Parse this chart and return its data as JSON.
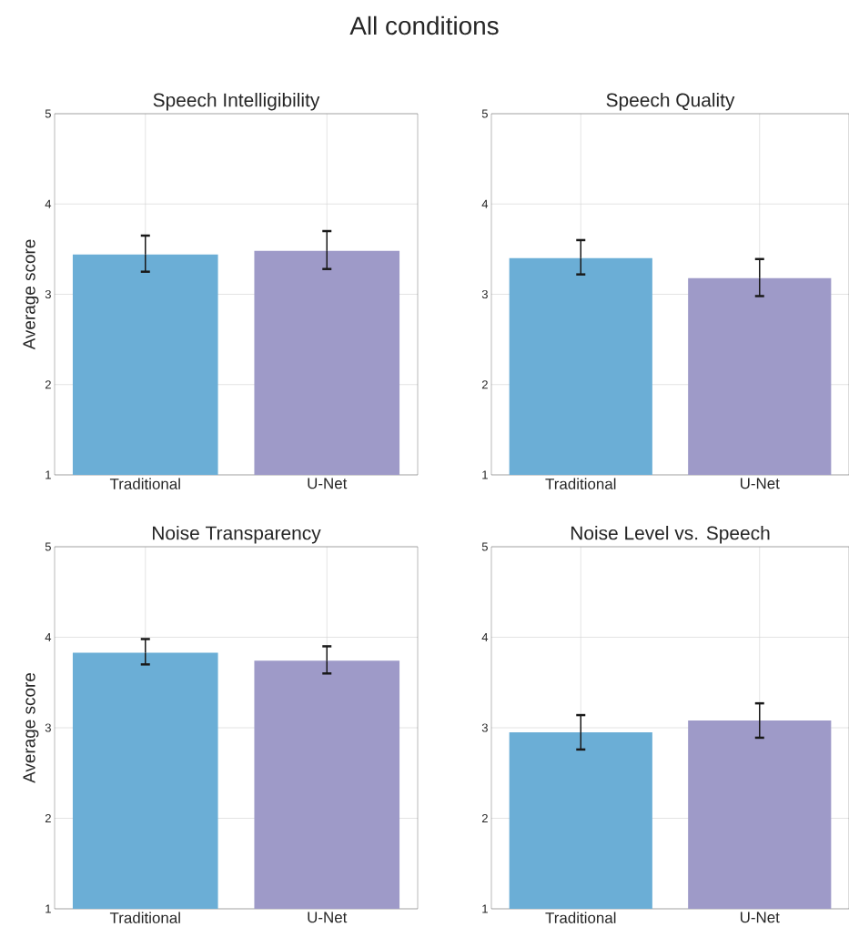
{
  "chart_data": [
    {
      "type": "bar",
      "title": "Speech Intelligibility",
      "ylabel": "Average score",
      "annotations": [
        "All conditions"
      ],
      "categories": [
        "Traditional",
        "U-Net"
      ],
      "values": [
        3.44,
        3.48
      ],
      "errors": [
        [
          3.25,
          3.65
        ],
        [
          3.28,
          3.7
        ]
      ],
      "colors": [
        "#6baed6",
        "#9e9ac8"
      ],
      "ylim": [
        1,
        5
      ],
      "yticks": [
        1,
        2,
        3,
        4,
        5
      ],
      "grid": true
    },
    {
      "type": "bar",
      "title": "Speech Quality",
      "categories": [
        "Traditional",
        "U-Net"
      ],
      "values": [
        3.4,
        3.18
      ],
      "errors": [
        [
          3.22,
          3.6
        ],
        [
          2.98,
          3.39
        ]
      ],
      "colors": [
        "#6baed6",
        "#9e9ac8"
      ],
      "ylim": [
        1,
        5
      ],
      "yticks": [
        1,
        2,
        3,
        4,
        5
      ],
      "grid": true
    },
    {
      "type": "bar",
      "title": "Noise Transparency",
      "ylabel": "Average score",
      "categories": [
        "Traditional",
        "U-Net"
      ],
      "values": [
        3.83,
        3.74
      ],
      "errors": [
        [
          3.7,
          3.98
        ],
        [
          3.6,
          3.9
        ]
      ],
      "colors": [
        "#6baed6",
        "#9e9ac8"
      ],
      "ylim": [
        1,
        5
      ],
      "yticks": [
        1,
        2,
        3,
        4,
        5
      ],
      "grid": true
    },
    {
      "type": "bar",
      "title": "Noise Level vs. Speech",
      "categories": [
        "Traditional",
        "U-Net"
      ],
      "values": [
        2.95,
        3.08
      ],
      "errors": [
        [
          2.76,
          3.14
        ],
        [
          2.89,
          3.27
        ]
      ],
      "colors": [
        "#6baed6",
        "#9e9ac8"
      ],
      "ylim": [
        1,
        5
      ],
      "yticks": [
        1,
        2,
        3,
        4,
        5
      ],
      "grid": true
    }
  ]
}
